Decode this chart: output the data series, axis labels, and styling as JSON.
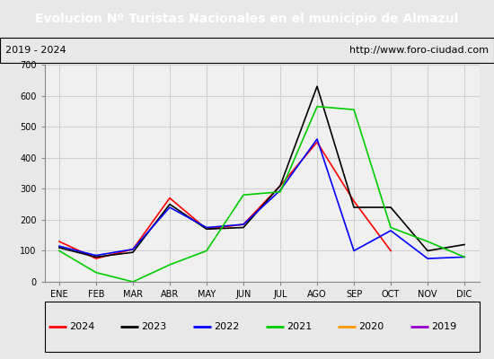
{
  "title": "Evolucion Nº Turistas Nacionales en el municipio de Almazul",
  "subtitle_left": "2019 - 2024",
  "subtitle_right": "http://www.foro-ciudad.com",
  "months": [
    "ENE",
    "FEB",
    "MAR",
    "ABR",
    "MAY",
    "JUN",
    "JUL",
    "AGO",
    "SEP",
    "OCT",
    "NOV",
    "DIC"
  ],
  "ylim": [
    0,
    700
  ],
  "yticks": [
    0,
    100,
    200,
    300,
    400,
    500,
    600,
    700
  ],
  "series": {
    "2024": {
      "color": "#ff0000",
      "values": [
        130,
        75,
        105,
        270,
        170,
        185,
        310,
        450,
        260,
        100,
        null,
        null
      ]
    },
    "2023": {
      "color": "#000000",
      "values": [
        110,
        80,
        95,
        255,
        170,
        175,
        310,
        630,
        240,
        240,
        100,
        120
      ]
    },
    "2022": {
      "color": "#0000ff",
      "values": [
        115,
        85,
        105,
        240,
        175,
        185,
        295,
        460,
        100,
        165,
        75,
        80
      ]
    },
    "2021": {
      "color": "#00cc00",
      "values": [
        100,
        30,
        0,
        55,
        100,
        280,
        290,
        565,
        555,
        175,
        130,
        80
      ]
    },
    "2020": {
      "color": "#ff9900",
      "values": [
        null,
        null,
        null,
        null,
        null,
        null,
        null,
        null,
        null,
        null,
        null,
        null
      ]
    },
    "2019": {
      "color": "#9900cc",
      "values": [
        null,
        null,
        null,
        null,
        null,
        null,
        null,
        null,
        null,
        null,
        null,
        null
      ]
    }
  },
  "title_bg": "#4472c4",
  "title_color": "#ffffff",
  "title_fontsize": 10,
  "subtitle_fontsize": 8,
  "legend_order": [
    "2024",
    "2023",
    "2022",
    "2021",
    "2020",
    "2019"
  ],
  "background_color": "#e8e8e8",
  "plot_bg": "#f0f0f0",
  "grid_color": "#d0d0d0"
}
